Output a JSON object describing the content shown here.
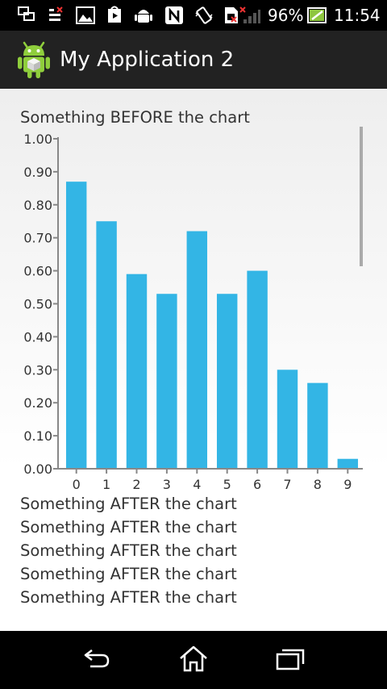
{
  "status_bar": {
    "battery_percent": "96%",
    "time": "11:54"
  },
  "action_bar": {
    "title": "My Application 2",
    "icon": "android-robot-icon"
  },
  "content": {
    "before_text": "Something BEFORE the chart",
    "after_texts": [
      "Something AFTER the chart",
      "Something AFTER the chart",
      "Something AFTER the chart",
      "Something AFTER the chart",
      "Something AFTER the chart"
    ]
  },
  "chart_data": {
    "type": "bar",
    "categories": [
      "0",
      "1",
      "2",
      "3",
      "4",
      "5",
      "6",
      "7",
      "8",
      "9"
    ],
    "values": [
      0.87,
      0.75,
      0.59,
      0.53,
      0.72,
      0.53,
      0.6,
      0.3,
      0.26,
      0.03
    ],
    "ylim": [
      0,
      1.0
    ],
    "yticks": [
      "0.00",
      "0.10",
      "0.20",
      "0.30",
      "0.40",
      "0.50",
      "0.60",
      "0.70",
      "0.80",
      "0.90",
      "1.00"
    ],
    "bar_color": "#33b5e5",
    "title": "",
    "xlabel": "",
    "ylabel": ""
  },
  "nav_bar": {
    "icons": [
      "back-icon",
      "home-icon",
      "recent-apps-icon"
    ]
  }
}
